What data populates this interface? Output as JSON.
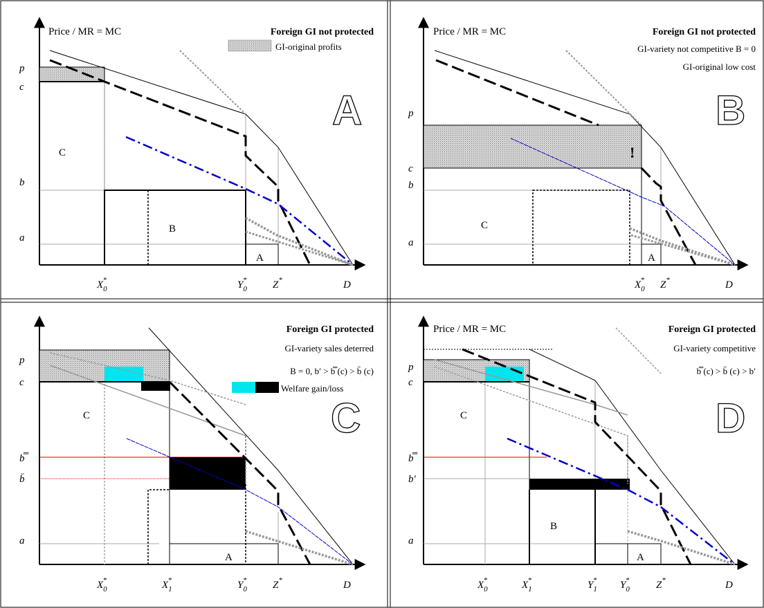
{
  "patterns": {
    "profits_fill": "#d0d0d0",
    "gain_color": "#00e5ee",
    "loss_color": "#000000",
    "policy_line_color": "#dd0000",
    "blue_line_color": "#0000cc"
  },
  "panels": [
    {
      "letter": "A",
      "axis_title": "Price / MR = MC",
      "title": "Foreign GI not protected",
      "legend_text": "GI-original profits",
      "y_labels": [
        "p",
        "c",
        "b",
        "a"
      ],
      "x_labels": [
        {
          "main": "X",
          "sub": "0",
          "sup": "*"
        },
        {
          "main": "Y",
          "sub": "0",
          "sup": "*"
        },
        {
          "main": "Z",
          "sub": "",
          "sup": "*"
        },
        {
          "main": "D",
          "sub": "",
          "sup": ""
        }
      ],
      "region_labels": [
        "C",
        "B",
        "A"
      ]
    },
    {
      "letter": "B",
      "axis_title": "Price / MR = MC",
      "title": "Foreign GI not protected",
      "note1": "GI-variety not competitive B = 0",
      "note2": "GI-original low cost",
      "mark": "!",
      "y_labels": [
        "p",
        "c",
        "b",
        "a"
      ],
      "x_labels": [
        {
          "main": "X",
          "sub": "0",
          "sup": "*"
        },
        {
          "main": "Z",
          "sub": "",
          "sup": "*"
        },
        {
          "main": "D",
          "sub": "",
          "sup": ""
        }
      ],
      "region_labels": [
        "C",
        "A"
      ]
    },
    {
      "letter": "C",
      "title": "Foreign GI protected",
      "note1": "GI-variety sales deterred",
      "note2": "B = 0,  b′ > b̿ (c) > b̄ (c)",
      "legend_text": "Welfare gain/loss",
      "y_labels": [
        "p",
        "c",
        "b̿",
        "b̄",
        "a"
      ],
      "x_labels": [
        {
          "main": "X",
          "sub": "0",
          "sup": "*"
        },
        {
          "main": "X",
          "sub": "1",
          "sup": "*"
        },
        {
          "main": "Y",
          "sub": "0",
          "sup": "*"
        },
        {
          "main": "Z",
          "sub": "",
          "sup": "*"
        },
        {
          "main": "D",
          "sub": "",
          "sup": ""
        }
      ],
      "region_labels": [
        "C",
        "A"
      ]
    },
    {
      "letter": "D",
      "axis_title": "Price / MR = MC",
      "title": "Foreign GI protected",
      "note1": "GI-variety competitive",
      "note2": "b̿ (c) > b̄ (c) > b′",
      "y_labels": [
        "p",
        "c",
        "b̿",
        "b′",
        "a"
      ],
      "x_labels": [
        {
          "main": "X",
          "sub": "0",
          "sup": "*"
        },
        {
          "main": "X",
          "sub": "1",
          "sup": "*"
        },
        {
          "main": "Y",
          "sub": "1",
          "sup": "*"
        },
        {
          "main": "Y",
          "sub": "0",
          "sup": "*"
        },
        {
          "main": "Z",
          "sub": "",
          "sup": "*"
        },
        {
          "main": "D",
          "sub": "",
          "sup": ""
        }
      ],
      "region_labels": [
        "C",
        "B",
        "A"
      ]
    }
  ]
}
